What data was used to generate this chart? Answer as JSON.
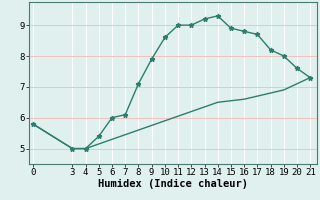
{
  "upper_x": [
    0,
    3,
    4,
    5,
    6,
    7,
    8,
    9,
    10,
    11,
    12,
    13,
    14,
    15,
    16,
    17,
    18,
    19,
    20,
    21
  ],
  "upper_y": [
    5.8,
    5.0,
    5.0,
    5.4,
    6.0,
    6.1,
    7.1,
    7.9,
    8.6,
    9.0,
    9.0,
    9.2,
    9.3,
    8.9,
    8.8,
    8.7,
    8.2,
    8.0,
    7.6,
    7.3
  ],
  "lower_x": [
    0,
    3,
    4,
    5,
    6,
    7,
    8,
    9,
    10,
    11,
    12,
    13,
    14,
    15,
    16,
    17,
    18,
    19,
    20,
    21
  ],
  "lower_y": [
    5.8,
    5.0,
    5.0,
    5.15,
    5.3,
    5.45,
    5.6,
    5.75,
    5.9,
    6.05,
    6.2,
    6.35,
    6.5,
    6.55,
    6.6,
    6.7,
    6.8,
    6.9,
    7.1,
    7.3
  ],
  "line_color": "#2e7d6e",
  "bg_color": "#dff0ee",
  "grid_color_v": "#ffffff",
  "grid_color_h": "#f5c0c0",
  "xlabel": "Humidex (Indice chaleur)",
  "xticks": [
    0,
    3,
    4,
    5,
    6,
    7,
    8,
    9,
    10,
    11,
    12,
    13,
    14,
    15,
    16,
    17,
    18,
    19,
    20,
    21
  ],
  "yticks": [
    5,
    6,
    7,
    8,
    9
  ],
  "xlim": [
    -0.3,
    21.5
  ],
  "ylim": [
    4.5,
    9.75
  ],
  "marker": "*",
  "markersize": 3.5,
  "linewidth": 1.0,
  "xlabel_fontsize": 7.5,
  "tick_fontsize": 6.5
}
